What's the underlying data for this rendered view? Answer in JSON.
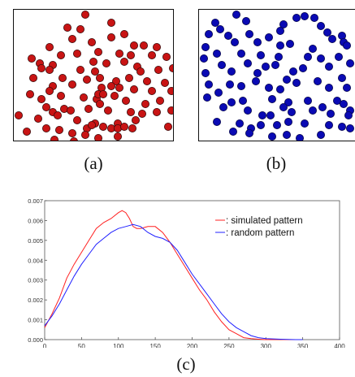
{
  "panels": {
    "a": {
      "caption": "(a)",
      "dot_color": "#c81414",
      "dot_outline": "#3a0a0a",
      "points": [
        [
          88,
          6
        ],
        [
          120,
          16
        ],
        [
          66,
          22
        ],
        [
          82,
          24
        ],
        [
          72,
          36
        ],
        [
          96,
          40
        ],
        [
          120,
          34
        ],
        [
          136,
          30
        ],
        [
          148,
          44
        ],
        [
          160,
          44
        ],
        [
          176,
          46
        ],
        [
          44,
          46
        ],
        [
          58,
          56
        ],
        [
          78,
          54
        ],
        [
          104,
          52
        ],
        [
          130,
          54
        ],
        [
          144,
          56
        ],
        [
          170,
          56
        ],
        [
          22,
          60
        ],
        [
          188,
          58
        ],
        [
          32,
          66
        ],
        [
          48,
          68
        ],
        [
          98,
          64
        ],
        [
          114,
          66
        ],
        [
          136,
          64
        ],
        [
          152,
          70
        ],
        [
          34,
          72
        ],
        [
          44,
          74
        ],
        [
          82,
          74
        ],
        [
          100,
          76
        ],
        [
          156,
          76
        ],
        [
          178,
          74
        ],
        [
          196,
          72
        ],
        [
          24,
          84
        ],
        [
          60,
          84
        ],
        [
          90,
          86
        ],
        [
          106,
          84
        ],
        [
          126,
          88
        ],
        [
          142,
          84
        ],
        [
          164,
          88
        ],
        [
          186,
          90
        ],
        [
          48,
          94
        ],
        [
          72,
          92
        ],
        [
          44,
          100
        ],
        [
          108,
          96
        ],
        [
          120,
          94
        ],
        [
          130,
          96
        ],
        [
          148,
          98
        ],
        [
          170,
          100
        ],
        [
          194,
          100
        ],
        [
          20,
          104
        ],
        [
          34,
          110
        ],
        [
          58,
          106
        ],
        [
          86,
          108
        ],
        [
          102,
          110
        ],
        [
          104,
          104
        ],
        [
          110,
          104
        ],
        [
          106,
          116
        ],
        [
          124,
          106
        ],
        [
          138,
          112
        ],
        [
          162,
          116
        ],
        [
          180,
          112
        ],
        [
          40,
          120
        ],
        [
          48,
          126
        ],
        [
          54,
          130
        ],
        [
          62,
          122
        ],
        [
          70,
          124
        ],
        [
          92,
          122
        ],
        [
          116,
          124
        ],
        [
          144,
          126
        ],
        [
          158,
          128
        ],
        [
          176,
          126
        ],
        [
          194,
          124
        ],
        [
          6,
          130
        ],
        [
          30,
          134
        ],
        [
          78,
          136
        ],
        [
          100,
          140
        ],
        [
          128,
          140
        ],
        [
          150,
          136
        ],
        [
          190,
          144
        ],
        [
          16,
          150
        ],
        [
          40,
          146
        ],
        [
          56,
          148
        ],
        [
          72,
          152
        ],
        [
          90,
          146
        ],
        [
          96,
          142
        ],
        [
          110,
          144
        ],
        [
          120,
          146
        ],
        [
          128,
          146
        ],
        [
          136,
          144
        ],
        [
          146,
          146
        ],
        [
          88,
          154
        ],
        [
          104,
          158
        ],
        [
          128,
          156
        ],
        [
          50,
          160
        ],
        [
          74,
          162
        ]
      ]
    },
    "b": {
      "caption": "(b)",
      "dot_color": "#0a0ab4",
      "dot_outline": "#05054a",
      "points": [
        [
          46,
          6
        ],
        [
          20,
          16
        ],
        [
          58,
          14
        ],
        [
          120,
          10
        ],
        [
          130,
          8
        ],
        [
          142,
          10
        ],
        [
          150,
          20
        ],
        [
          104,
          18
        ],
        [
          100,
          26
        ],
        [
          158,
          28
        ],
        [
          164,
          36
        ],
        [
          176,
          32
        ],
        [
          178,
          40
        ],
        [
          26,
          24
        ],
        [
          12,
          30
        ],
        [
          36,
          32
        ],
        [
          62,
          30
        ],
        [
          72,
          40
        ],
        [
          86,
          34
        ],
        [
          44,
          40
        ],
        [
          100,
          44
        ],
        [
          112,
          42
        ],
        [
          140,
          48
        ],
        [
          182,
          44
        ],
        [
          8,
          46
        ],
        [
          22,
          54
        ],
        [
          52,
          54
        ],
        [
          76,
          56
        ],
        [
          98,
          58
        ],
        [
          134,
          58
        ],
        [
          150,
          60
        ],
        [
          160,
          70
        ],
        [
          172,
          58
        ],
        [
          186,
          66
        ],
        [
          6,
          60
        ],
        [
          8,
          78
        ],
        [
          28,
          68
        ],
        [
          40,
          76
        ],
        [
          60,
          66
        ],
        [
          72,
          78
        ],
        [
          82,
          70
        ],
        [
          94,
          68
        ],
        [
          116,
          76
        ],
        [
          128,
          72
        ],
        [
          108,
          86
        ],
        [
          176,
          84
        ],
        [
          12,
          92
        ],
        [
          24,
          102
        ],
        [
          38,
          92
        ],
        [
          52,
          94
        ],
        [
          70,
          88
        ],
        [
          86,
          96
        ],
        [
          100,
          98
        ],
        [
          120,
          90
        ],
        [
          146,
          88
        ],
        [
          160,
          96
        ],
        [
          182,
          96
        ],
        [
          10,
          108
        ],
        [
          40,
          114
        ],
        [
          54,
          112
        ],
        [
          90,
          110
        ],
        [
          110,
          114
        ],
        [
          134,
          112
        ],
        [
          170,
          112
        ],
        [
          178,
          116
        ],
        [
          186,
          124
        ],
        [
          30,
          120
        ],
        [
          60,
          124
        ],
        [
          78,
          130
        ],
        [
          88,
          130
        ],
        [
          104,
          120
        ],
        [
          114,
          126
        ],
        [
          140,
          124
        ],
        [
          152,
          120
        ],
        [
          162,
          128
        ],
        [
          184,
          130
        ],
        [
          22,
          138
        ],
        [
          50,
          140
        ],
        [
          64,
          146
        ],
        [
          76,
          142
        ],
        [
          96,
          142
        ],
        [
          110,
          138
        ],
        [
          130,
          140
        ],
        [
          160,
          142
        ],
        [
          176,
          144
        ],
        [
          186,
          146
        ],
        [
          42,
          150
        ],
        [
          62,
          152
        ],
        [
          90,
          156
        ],
        [
          108,
          154
        ],
        [
          124,
          158
        ],
        [
          150,
          154
        ]
      ]
    }
  },
  "caption_c": "(c)",
  "chart_data": {
    "type": "line",
    "xlim": [
      0,
      400
    ],
    "ylim": [
      0,
      0.007
    ],
    "xticks": [
      "0",
      "50",
      "100",
      "150",
      "200",
      "250",
      "300",
      "350",
      "400"
    ],
    "yticks": [
      "0.000",
      "0.001",
      "0.002",
      "0.003",
      "0.004",
      "0.005",
      "0.006",
      "0.007"
    ],
    "grid": false,
    "legend": "top-right",
    "series": [
      {
        "name": ": simulated pattern",
        "color": "#ff2020",
        "x": [
          0,
          10,
          20,
          30,
          40,
          50,
          60,
          70,
          80,
          90,
          100,
          105,
          110,
          115,
          120,
          125,
          130,
          140,
          150,
          160,
          170,
          180,
          190,
          200,
          210,
          220,
          230,
          240,
          250,
          260,
          270,
          280,
          290,
          300,
          320,
          340
        ],
        "y": [
          0.0006,
          0.0013,
          0.0021,
          0.0031,
          0.0038,
          0.0044,
          0.005,
          0.0056,
          0.0059,
          0.0061,
          0.0064,
          0.0065,
          0.0064,
          0.0061,
          0.0057,
          0.0056,
          0.0056,
          0.0057,
          0.0057,
          0.0054,
          0.0049,
          0.0043,
          0.0037,
          0.0031,
          0.0025,
          0.002,
          0.0014,
          0.0009,
          0.0005,
          0.0003,
          0.0001,
          5e-05,
          2e-05,
          0.0,
          0.0,
          0.0
        ]
      },
      {
        "name": ": random pattern",
        "color": "#2020ff",
        "x": [
          0,
          10,
          20,
          30,
          40,
          50,
          60,
          70,
          80,
          90,
          100,
          110,
          120,
          130,
          140,
          150,
          160,
          170,
          180,
          190,
          200,
          210,
          220,
          230,
          240,
          250,
          260,
          270,
          280,
          290,
          300,
          320,
          340,
          350
        ],
        "y": [
          0.0007,
          0.0012,
          0.0018,
          0.0025,
          0.0032,
          0.0038,
          0.0043,
          0.0048,
          0.0051,
          0.0054,
          0.0056,
          0.0057,
          0.0058,
          0.0057,
          0.0054,
          0.0052,
          0.0051,
          0.0049,
          0.0045,
          0.0039,
          0.0033,
          0.0028,
          0.0023,
          0.0018,
          0.0013,
          0.0009,
          0.0006,
          0.0004,
          0.0002,
          0.0001,
          5e-05,
          2e-05,
          0.0,
          0.0
        ]
      }
    ]
  }
}
